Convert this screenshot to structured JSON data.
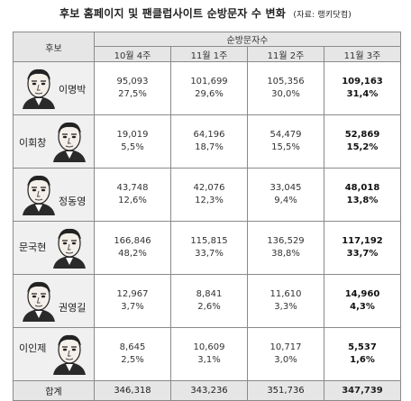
{
  "title": "후보 홈페이지 및 팬클럽사이트 순방문자 수 변화",
  "source": "(자료: 랭키닷컴)",
  "header": {
    "candidate": "후보",
    "group": "순방문자수",
    "weeks": [
      "10월 4주",
      "11월 1주",
      "11월 2주",
      "11월 3주"
    ]
  },
  "rows": [
    {
      "name": "이명박",
      "v": [
        "95,093",
        "101,699",
        "105,356",
        "109,163"
      ],
      "p": [
        "27,5%",
        "29,6%",
        "30,0%",
        "31,4%"
      ]
    },
    {
      "name": "이회창",
      "v": [
        "19,019",
        "64,196",
        "54,479",
        "52,869"
      ],
      "p": [
        "5,5%",
        "18,7%",
        "15,5%",
        "15,2%"
      ]
    },
    {
      "name": "정동영",
      "v": [
        "43,748",
        "42,076",
        "33,045",
        "48,018"
      ],
      "p": [
        "12,6%",
        "12,3%",
        "9,4%",
        "13,8%"
      ]
    },
    {
      "name": "문국현",
      "v": [
        "166,846",
        "115,815",
        "136,529",
        "117,192"
      ],
      "p": [
        "48,2%",
        "33,7%",
        "38,8%",
        "33,7%"
      ]
    },
    {
      "name": "권영길",
      "v": [
        "12,967",
        "8,841",
        "11,610",
        "14,960"
      ],
      "p": [
        "3,7%",
        "2,6%",
        "3,3%",
        "4,3%"
      ]
    },
    {
      "name": "이인제",
      "v": [
        "8,645",
        "10,609",
        "10,717",
        "5,537"
      ],
      "p": [
        "2,5%",
        "3,1%",
        "3,0%",
        "1,6%"
      ]
    }
  ],
  "total": {
    "label": "합계",
    "v": [
      "346,318",
      "343,236",
      "351,736",
      "347,739"
    ]
  }
}
